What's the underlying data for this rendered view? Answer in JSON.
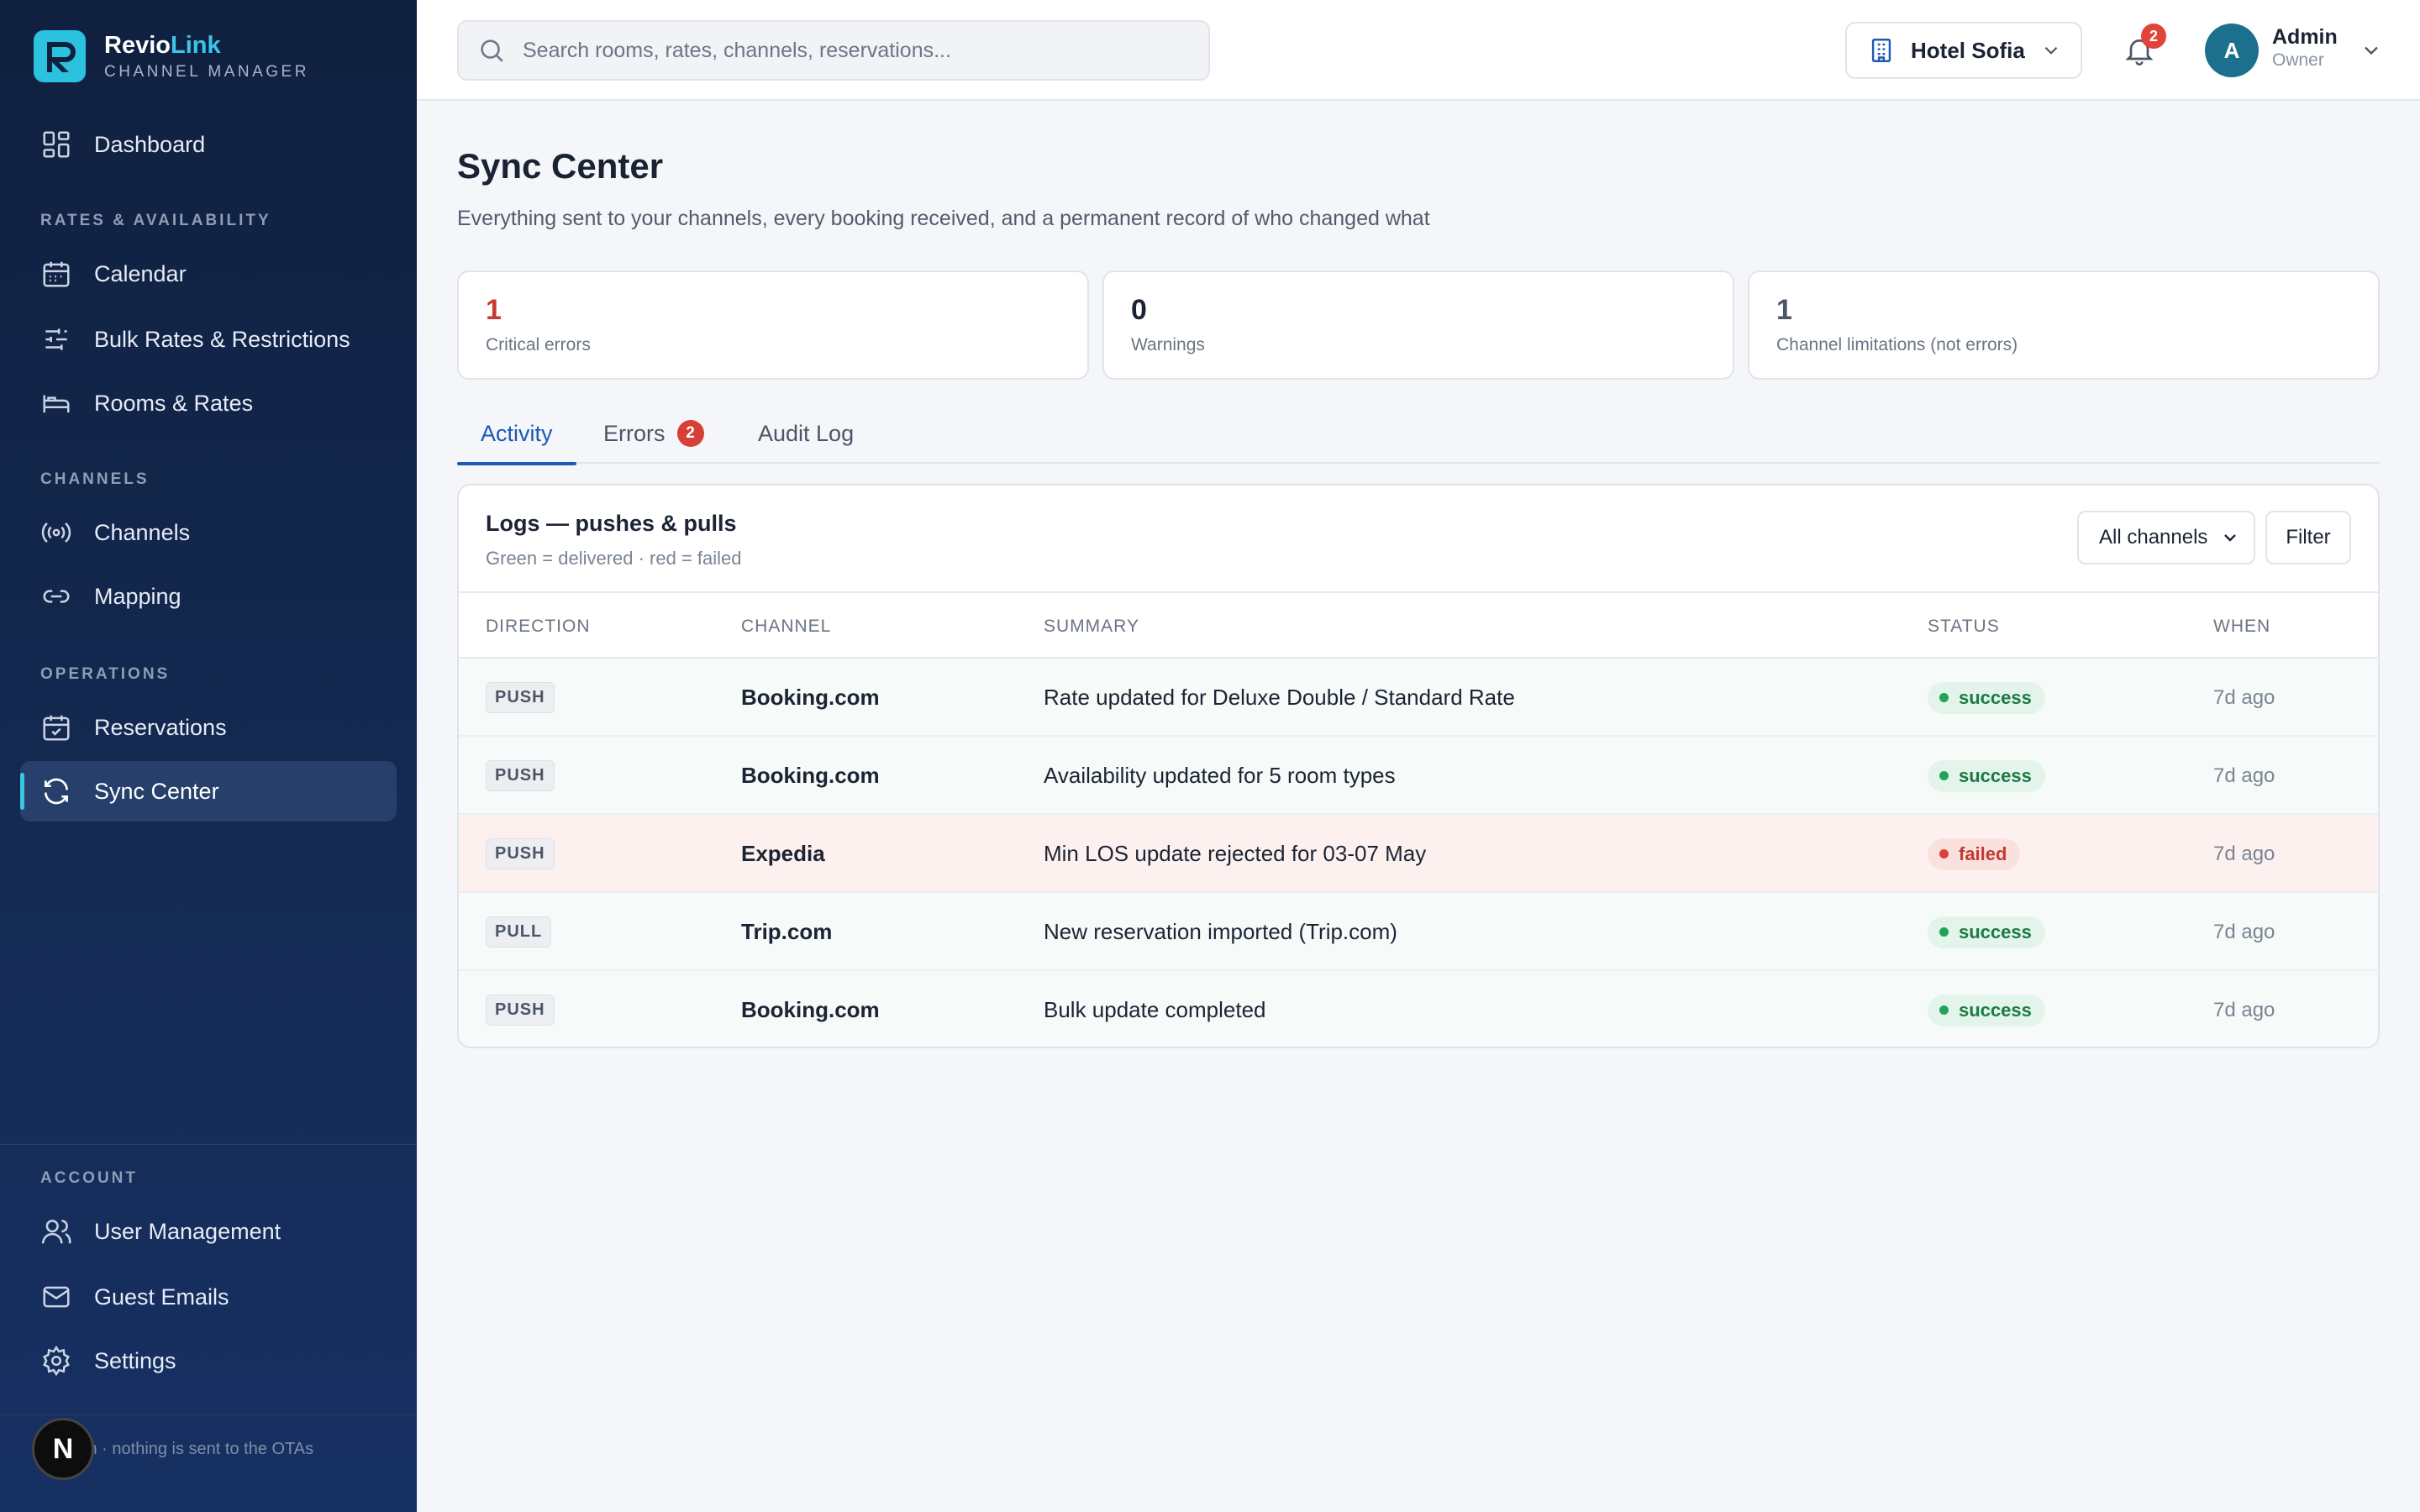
{
  "brand": {
    "name_part1": "Revio",
    "name_part2": "Link",
    "subtitle": "CHANNEL MANAGER"
  },
  "sidebar": {
    "dashboard": "Dashboard",
    "section_rates": "RATES & AVAILABILITY",
    "calendar": "Calendar",
    "bulk_rates": "Bulk Rates & Restrictions",
    "rooms_rates": "Rooms & Rates",
    "section_channels": "CHANNELS",
    "channels": "Channels",
    "mapping": "Mapping",
    "section_operations": "OPERATIONS",
    "reservations": "Reservations",
    "sync_center": "Sync Center",
    "section_account": "ACCOUNT",
    "user_management": "User Management",
    "guest_emails": "Guest Emails",
    "settings": "Settings",
    "footer_text": "nnection · nothing is sent to the OTAs",
    "dev_badge": "N"
  },
  "topbar": {
    "search_placeholder": "Search rooms, rates, channels, reservations...",
    "hotel": "Hotel Sofia",
    "notifications_count": "2",
    "avatar_initial": "A",
    "user_name": "Admin",
    "user_role": "Owner"
  },
  "page": {
    "title": "Sync Center",
    "subtitle": "Everything sent to your channels, every booking received, and a permanent record of who changed what"
  },
  "stats": [
    {
      "value": "1",
      "label": "Critical errors"
    },
    {
      "value": "0",
      "label": "Warnings"
    },
    {
      "value": "1",
      "label": "Channel limitations (not errors)"
    }
  ],
  "tabs": {
    "activity": "Activity",
    "errors": "Errors",
    "errors_count": "2",
    "audit_log": "Audit Log"
  },
  "panel": {
    "title": "Logs — pushes & pulls",
    "subtitle": "Green = delivered · red = failed",
    "channel_filter": "All channels",
    "filter_button": "Filter"
  },
  "table": {
    "headers": {
      "direction": "DIRECTION",
      "channel": "CHANNEL",
      "summary": "SUMMARY",
      "status": "STATUS",
      "when": "WHEN"
    },
    "rows": [
      {
        "direction": "PUSH",
        "channel": "Booking.com",
        "summary": "Rate updated for Deluxe Double / Standard Rate",
        "status": "success",
        "when": "7d ago"
      },
      {
        "direction": "PUSH",
        "channel": "Booking.com",
        "summary": "Availability updated for 5 room types",
        "status": "success",
        "when": "7d ago"
      },
      {
        "direction": "PUSH",
        "channel": "Expedia",
        "summary": "Min LOS update rejected for 03-07 May",
        "status": "failed",
        "when": "7d ago"
      },
      {
        "direction": "PULL",
        "channel": "Trip.com",
        "summary": "New reservation imported (Trip.com)",
        "status": "success",
        "when": "7d ago"
      },
      {
        "direction": "PUSH",
        "channel": "Booking.com",
        "summary": "Bulk update completed",
        "status": "success",
        "when": "7d ago"
      }
    ]
  },
  "colors": {
    "sidebar_bg": "#10203f",
    "accent_cyan": "#3cc6e6",
    "active_tab": "#1c58b8",
    "success": "#22a35a",
    "failed": "#dd4136"
  }
}
